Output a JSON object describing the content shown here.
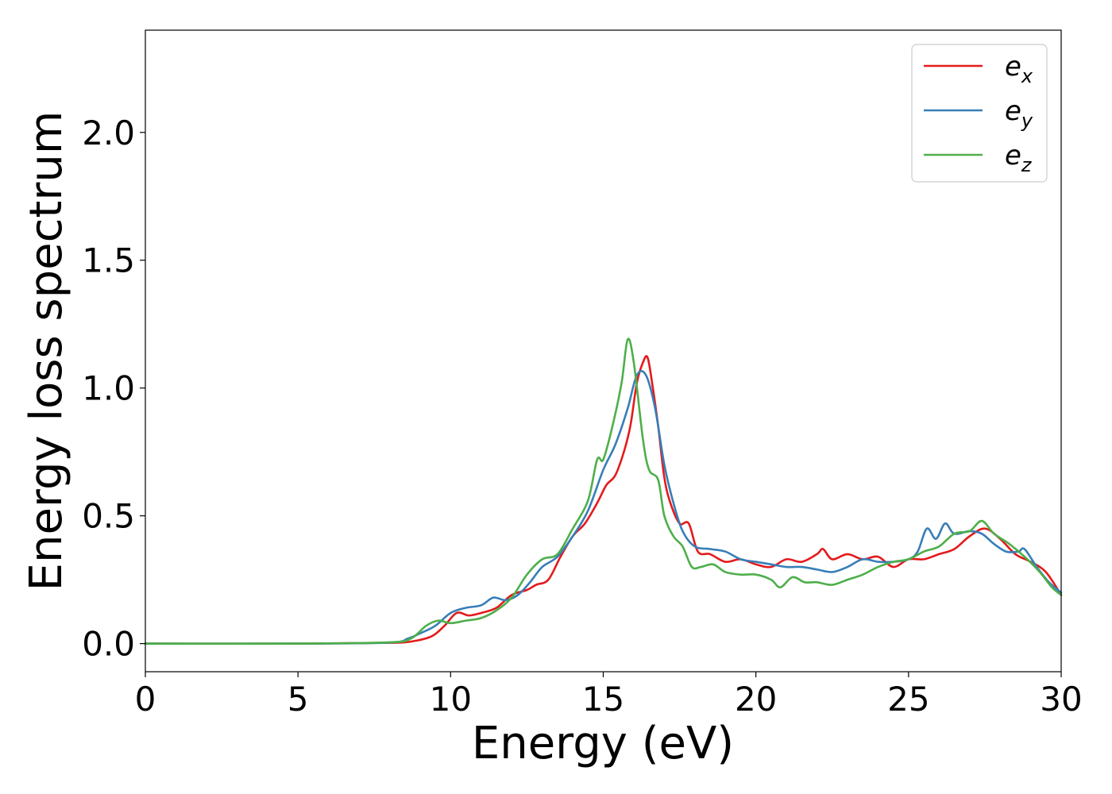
{
  "chart_data": {
    "type": "line",
    "xlabel": "Energy (eV)",
    "ylabel": "Energy loss spectrum",
    "xlim": [
      0,
      30
    ],
    "ylim": [
      -0.11,
      2.4
    ],
    "xticks": [
      "0",
      "5",
      "10",
      "15",
      "20",
      "25",
      "30"
    ],
    "yticks": [
      "0.0",
      "0.5",
      "1.0",
      "1.5",
      "2.0"
    ],
    "grid": false,
    "legend_position": "top-right",
    "series": [
      {
        "name": "e",
        "subscript": "x",
        "color": "#e41a1c",
        "points": [
          [
            0,
            0
          ],
          [
            5,
            0
          ],
          [
            8,
            0.003
          ],
          [
            8.8,
            0.01
          ],
          [
            9.4,
            0.03
          ],
          [
            9.8,
            0.07
          ],
          [
            10.2,
            0.12
          ],
          [
            10.6,
            0.11
          ],
          [
            11.0,
            0.12
          ],
          [
            11.5,
            0.14
          ],
          [
            12.0,
            0.19
          ],
          [
            12.5,
            0.21
          ],
          [
            12.8,
            0.23
          ],
          [
            13.2,
            0.25
          ],
          [
            13.6,
            0.34
          ],
          [
            14.0,
            0.42
          ],
          [
            14.4,
            0.47
          ],
          [
            14.8,
            0.55
          ],
          [
            15.1,
            0.62
          ],
          [
            15.4,
            0.66
          ],
          [
            15.7,
            0.76
          ],
          [
            15.9,
            0.86
          ],
          [
            16.1,
            1.02
          ],
          [
            16.3,
            1.1
          ],
          [
            16.45,
            1.12
          ],
          [
            16.6,
            1.02
          ],
          [
            16.8,
            0.85
          ],
          [
            17.0,
            0.65
          ],
          [
            17.2,
            0.55
          ],
          [
            17.5,
            0.47
          ],
          [
            17.8,
            0.47
          ],
          [
            18.1,
            0.36
          ],
          [
            18.5,
            0.35
          ],
          [
            19.0,
            0.32
          ],
          [
            19.5,
            0.33
          ],
          [
            20.0,
            0.31
          ],
          [
            20.5,
            0.3
          ],
          [
            21.0,
            0.33
          ],
          [
            21.5,
            0.32
          ],
          [
            22.0,
            0.35
          ],
          [
            22.2,
            0.37
          ],
          [
            22.5,
            0.33
          ],
          [
            23.0,
            0.35
          ],
          [
            23.5,
            0.33
          ],
          [
            24.0,
            0.34
          ],
          [
            24.5,
            0.3
          ],
          [
            25.0,
            0.33
          ],
          [
            25.5,
            0.33
          ],
          [
            26.0,
            0.35
          ],
          [
            26.5,
            0.37
          ],
          [
            27.0,
            0.42
          ],
          [
            27.5,
            0.45
          ],
          [
            28.0,
            0.41
          ],
          [
            28.5,
            0.35
          ],
          [
            29.0,
            0.32
          ],
          [
            29.5,
            0.28
          ],
          [
            30.0,
            0.19
          ]
        ]
      },
      {
        "name": "e",
        "subscript": "y",
        "color": "#377eb8",
        "points": [
          [
            0,
            0
          ],
          [
            5,
            0
          ],
          [
            8,
            0.004
          ],
          [
            8.6,
            0.02
          ],
          [
            9.0,
            0.04
          ],
          [
            9.5,
            0.07
          ],
          [
            10.0,
            0.12
          ],
          [
            10.5,
            0.14
          ],
          [
            11.0,
            0.15
          ],
          [
            11.4,
            0.18
          ],
          [
            11.8,
            0.17
          ],
          [
            12.2,
            0.19
          ],
          [
            12.6,
            0.24
          ],
          [
            13.0,
            0.3
          ],
          [
            13.5,
            0.34
          ],
          [
            14.0,
            0.42
          ],
          [
            14.5,
            0.52
          ],
          [
            15.0,
            0.68
          ],
          [
            15.4,
            0.78
          ],
          [
            15.8,
            0.92
          ],
          [
            16.1,
            1.05
          ],
          [
            16.4,
            1.05
          ],
          [
            16.7,
            0.92
          ],
          [
            17.0,
            0.7
          ],
          [
            17.3,
            0.55
          ],
          [
            17.6,
            0.44
          ],
          [
            18.0,
            0.38
          ],
          [
            18.5,
            0.37
          ],
          [
            19.0,
            0.36
          ],
          [
            19.5,
            0.33
          ],
          [
            20.0,
            0.32
          ],
          [
            20.5,
            0.31
          ],
          [
            21.0,
            0.3
          ],
          [
            21.5,
            0.3
          ],
          [
            22.0,
            0.29
          ],
          [
            22.5,
            0.28
          ],
          [
            23.0,
            0.3
          ],
          [
            23.5,
            0.33
          ],
          [
            24.0,
            0.32
          ],
          [
            24.5,
            0.32
          ],
          [
            25.0,
            0.33
          ],
          [
            25.3,
            0.36
          ],
          [
            25.6,
            0.45
          ],
          [
            25.9,
            0.41
          ],
          [
            26.2,
            0.47
          ],
          [
            26.5,
            0.43
          ],
          [
            27.0,
            0.44
          ],
          [
            27.4,
            0.43
          ],
          [
            27.8,
            0.39
          ],
          [
            28.2,
            0.36
          ],
          [
            28.6,
            0.36
          ],
          [
            28.8,
            0.37
          ],
          [
            29.2,
            0.3
          ],
          [
            29.6,
            0.24
          ],
          [
            30.0,
            0.2
          ]
        ]
      },
      {
        "name": "e",
        "subscript": "z",
        "color": "#4daf4a",
        "points": [
          [
            0,
            0
          ],
          [
            5,
            0
          ],
          [
            8,
            0.005
          ],
          [
            8.7,
            0.02
          ],
          [
            9.2,
            0.07
          ],
          [
            9.6,
            0.09
          ],
          [
            10.0,
            0.08
          ],
          [
            10.5,
            0.09
          ],
          [
            11.0,
            0.1
          ],
          [
            11.5,
            0.13
          ],
          [
            12.0,
            0.18
          ],
          [
            12.5,
            0.27
          ],
          [
            13.0,
            0.33
          ],
          [
            13.5,
            0.35
          ],
          [
            14.0,
            0.45
          ],
          [
            14.5,
            0.56
          ],
          [
            14.8,
            0.72
          ],
          [
            15.0,
            0.72
          ],
          [
            15.3,
            0.85
          ],
          [
            15.6,
            1.02
          ],
          [
            15.8,
            1.19
          ],
          [
            16.0,
            1.1
          ],
          [
            16.3,
            0.8
          ],
          [
            16.5,
            0.68
          ],
          [
            16.8,
            0.64
          ],
          [
            17.0,
            0.5
          ],
          [
            17.3,
            0.42
          ],
          [
            17.6,
            0.38
          ],
          [
            17.9,
            0.3
          ],
          [
            18.2,
            0.3
          ],
          [
            18.6,
            0.31
          ],
          [
            19.0,
            0.28
          ],
          [
            19.5,
            0.27
          ],
          [
            20.0,
            0.27
          ],
          [
            20.5,
            0.25
          ],
          [
            20.8,
            0.22
          ],
          [
            21.2,
            0.26
          ],
          [
            21.6,
            0.24
          ],
          [
            22.0,
            0.24
          ],
          [
            22.5,
            0.23
          ],
          [
            23.0,
            0.25
          ],
          [
            23.5,
            0.27
          ],
          [
            24.0,
            0.3
          ],
          [
            24.5,
            0.32
          ],
          [
            25.0,
            0.33
          ],
          [
            25.5,
            0.36
          ],
          [
            26.0,
            0.38
          ],
          [
            26.5,
            0.43
          ],
          [
            27.0,
            0.44
          ],
          [
            27.4,
            0.48
          ],
          [
            27.8,
            0.43
          ],
          [
            28.3,
            0.39
          ],
          [
            28.8,
            0.34
          ],
          [
            29.3,
            0.28
          ],
          [
            29.7,
            0.22
          ],
          [
            30.0,
            0.19
          ]
        ]
      }
    ]
  }
}
